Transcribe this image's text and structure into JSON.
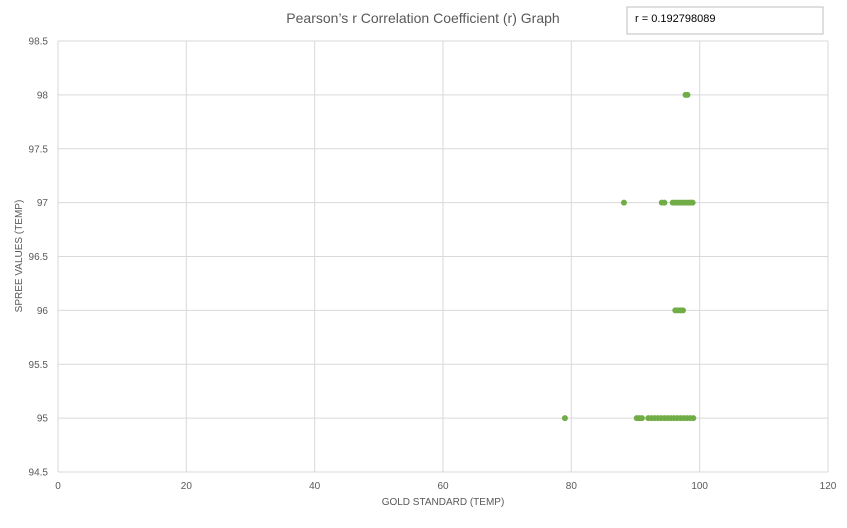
{
  "chart_data": {
    "type": "scatter",
    "title": "Pearson’s r Correlation Coefficient (r) Graph",
    "annotation": "r = 0.192798089",
    "xlabel": "GOLD STANDARD (TEMP)",
    "ylabel": "SPREE VALUES (TEMP)",
    "xlim": [
      0,
      120
    ],
    "ylim": [
      94.5,
      98.5
    ],
    "x_ticks": [
      0,
      20,
      40,
      60,
      80,
      100,
      120
    ],
    "y_ticks": [
      94.5,
      95,
      95.5,
      96,
      96.5,
      97,
      97.5,
      98,
      98.5
    ],
    "x_tick_labels": [
      "0",
      "20",
      "40",
      "60",
      "80",
      "100",
      "120"
    ],
    "y_tick_labels": [
      "94.5",
      "95",
      "95.5",
      "96",
      "96.5",
      "97",
      "97.5",
      "98",
      "98.5"
    ],
    "grid": true,
    "marker_color": "#70ad47",
    "grid_color": "#d9d9d9",
    "series": [
      {
        "points": [
          {
            "x": 79,
            "y": 95
          },
          {
            "x": 90.2,
            "y": 95
          },
          {
            "x": 90.6,
            "y": 95
          },
          {
            "x": 91,
            "y": 95
          },
          {
            "x": 92,
            "y": 95
          },
          {
            "x": 92.5,
            "y": 95
          },
          {
            "x": 93,
            "y": 95
          },
          {
            "x": 93.5,
            "y": 95
          },
          {
            "x": 94,
            "y": 95
          },
          {
            "x": 94.5,
            "y": 95
          },
          {
            "x": 95,
            "y": 95
          },
          {
            "x": 95.5,
            "y": 95
          },
          {
            "x": 96,
            "y": 95
          },
          {
            "x": 96.5,
            "y": 95
          },
          {
            "x": 97,
            "y": 95
          },
          {
            "x": 97.5,
            "y": 95
          },
          {
            "x": 98,
            "y": 95
          },
          {
            "x": 98.5,
            "y": 95
          },
          {
            "x": 99,
            "y": 95
          },
          {
            "x": 96.2,
            "y": 96
          },
          {
            "x": 96.6,
            "y": 96
          },
          {
            "x": 97,
            "y": 96
          },
          {
            "x": 97.4,
            "y": 96
          },
          {
            "x": 88.2,
            "y": 97
          },
          {
            "x": 94.1,
            "y": 97
          },
          {
            "x": 94.5,
            "y": 97
          },
          {
            "x": 95.8,
            "y": 97
          },
          {
            "x": 96.2,
            "y": 97
          },
          {
            "x": 96.6,
            "y": 97
          },
          {
            "x": 97,
            "y": 97
          },
          {
            "x": 97.4,
            "y": 97
          },
          {
            "x": 97.8,
            "y": 97
          },
          {
            "x": 98.2,
            "y": 97
          },
          {
            "x": 98.6,
            "y": 97
          },
          {
            "x": 98.9,
            "y": 97
          },
          {
            "x": 97.8,
            "y": 98
          },
          {
            "x": 98.1,
            "y": 98
          }
        ]
      }
    ]
  }
}
